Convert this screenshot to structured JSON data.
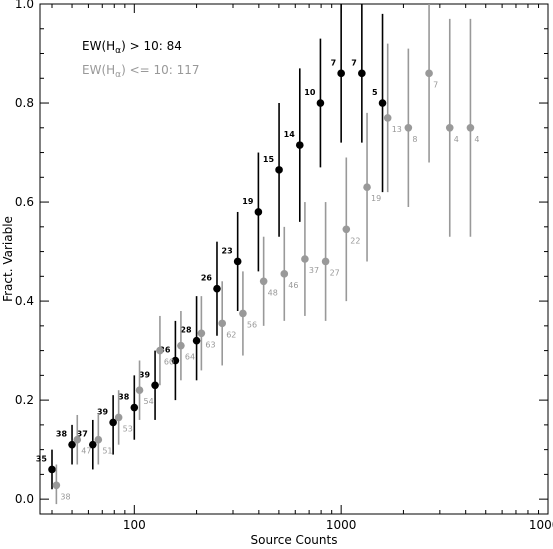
{
  "chart_data": {
    "type": "scatter",
    "xlabel": "Source Counts",
    "ylabel": "Fract. Variable",
    "xscale": "log",
    "xlim": [
      35,
      10000
    ],
    "ylim": [
      -0.03,
      1.0
    ],
    "xticks": [
      100,
      1000,
      10000
    ],
    "xtick_labels": [
      "100",
      "1000",
      "10000"
    ],
    "yticks": [
      0.0,
      0.2,
      0.4,
      0.6,
      0.8,
      1.0
    ],
    "ytick_labels": [
      "0.0",
      "0.2",
      "0.4",
      "0.6",
      "0.8",
      "1.0"
    ],
    "grid": false,
    "legend_position": "top-left",
    "series": [
      {
        "name": "EW(Hα) > 10:  84",
        "legend_main": "EW(H",
        "legend_sub": "α",
        "legend_rest": ") > 10:  84",
        "color": "#000000",
        "label_weight": "bold",
        "points": [
          {
            "x": 40,
            "y": 0.06,
            "low": 0.02,
            "high": 0.1,
            "label": "35"
          },
          {
            "x": 50,
            "y": 0.11,
            "low": 0.07,
            "high": 0.15,
            "label": "38"
          },
          {
            "x": 63,
            "y": 0.11,
            "low": 0.06,
            "high": 0.16,
            "label": "37"
          },
          {
            "x": 79,
            "y": 0.155,
            "low": 0.09,
            "high": 0.21,
            "label": "39"
          },
          {
            "x": 100,
            "y": 0.185,
            "low": 0.12,
            "high": 0.25,
            "label": "38"
          },
          {
            "x": 126,
            "y": 0.23,
            "low": 0.16,
            "high": 0.3,
            "label": "39"
          },
          {
            "x": 158,
            "y": 0.28,
            "low": 0.2,
            "high": 0.36,
            "label": "36"
          },
          {
            "x": 200,
            "y": 0.32,
            "low": 0.24,
            "high": 0.41,
            "label": "28"
          },
          {
            "x": 251,
            "y": 0.425,
            "low": 0.33,
            "high": 0.52,
            "label": "26"
          },
          {
            "x": 316,
            "y": 0.48,
            "low": 0.38,
            "high": 0.58,
            "label": "23"
          },
          {
            "x": 398,
            "y": 0.58,
            "low": 0.46,
            "high": 0.7,
            "label": "19"
          },
          {
            "x": 501,
            "y": 0.665,
            "low": 0.53,
            "high": 0.8,
            "label": "15"
          },
          {
            "x": 631,
            "y": 0.715,
            "low": 0.56,
            "high": 0.87,
            "label": "14"
          },
          {
            "x": 794,
            "y": 0.8,
            "low": 0.67,
            "high": 0.93,
            "label": "10"
          },
          {
            "x": 1000,
            "y": 0.86,
            "low": 0.72,
            "high": 1.0,
            "label": "7"
          },
          {
            "x": 1259,
            "y": 0.86,
            "low": 0.72,
            "high": 1.0,
            "label": "7"
          },
          {
            "x": 1585,
            "y": 0.8,
            "low": 0.62,
            "high": 0.98,
            "label": "5"
          }
        ]
      },
      {
        "name": "EW(Hα) <= 10:  117",
        "legend_main": "EW(H",
        "legend_sub": "α",
        "legend_rest": ") <= 10:  117",
        "color": "#999999",
        "label_weight": "normal",
        "points": [
          {
            "x": 42,
            "y": 0.028,
            "low": -0.01,
            "high": 0.07,
            "label": "38"
          },
          {
            "x": 53,
            "y": 0.12,
            "low": 0.07,
            "high": 0.17,
            "label": "47"
          },
          {
            "x": 67,
            "y": 0.12,
            "low": 0.07,
            "high": 0.17,
            "label": "51"
          },
          {
            "x": 84,
            "y": 0.165,
            "low": 0.11,
            "high": 0.22,
            "label": "53"
          },
          {
            "x": 106,
            "y": 0.22,
            "low": 0.16,
            "high": 0.28,
            "label": "54"
          },
          {
            "x": 133,
            "y": 0.3,
            "low": 0.23,
            "high": 0.37,
            "label": "60"
          },
          {
            "x": 168,
            "y": 0.31,
            "low": 0.24,
            "high": 0.38,
            "label": "64"
          },
          {
            "x": 211,
            "y": 0.335,
            "low": 0.26,
            "high": 0.41,
            "label": "63"
          },
          {
            "x": 266,
            "y": 0.355,
            "low": 0.27,
            "high": 0.44,
            "label": "62"
          },
          {
            "x": 335,
            "y": 0.375,
            "low": 0.29,
            "high": 0.46,
            "label": "56"
          },
          {
            "x": 422,
            "y": 0.44,
            "low": 0.35,
            "high": 0.53,
            "label": "48"
          },
          {
            "x": 531,
            "y": 0.455,
            "low": 0.36,
            "high": 0.55,
            "label": "46"
          },
          {
            "x": 668,
            "y": 0.485,
            "low": 0.37,
            "high": 0.6,
            "label": "37"
          },
          {
            "x": 841,
            "y": 0.48,
            "low": 0.36,
            "high": 0.6,
            "label": "27"
          },
          {
            "x": 1059,
            "y": 0.545,
            "low": 0.4,
            "high": 0.69,
            "label": "22"
          },
          {
            "x": 1334,
            "y": 0.63,
            "low": 0.48,
            "high": 0.78,
            "label": "19"
          },
          {
            "x": 1679,
            "y": 0.77,
            "low": 0.62,
            "high": 0.92,
            "label": "13"
          },
          {
            "x": 2113,
            "y": 0.75,
            "low": 0.59,
            "high": 0.91,
            "label": "8"
          },
          {
            "x": 2661,
            "y": 0.86,
            "low": 0.68,
            "high": 1.0,
            "label": "7"
          },
          {
            "x": 3350,
            "y": 0.75,
            "low": 0.53,
            "high": 0.97,
            "label": "4"
          },
          {
            "x": 4217,
            "y": 0.75,
            "low": 0.53,
            "high": 0.97,
            "label": "4"
          }
        ]
      }
    ]
  }
}
